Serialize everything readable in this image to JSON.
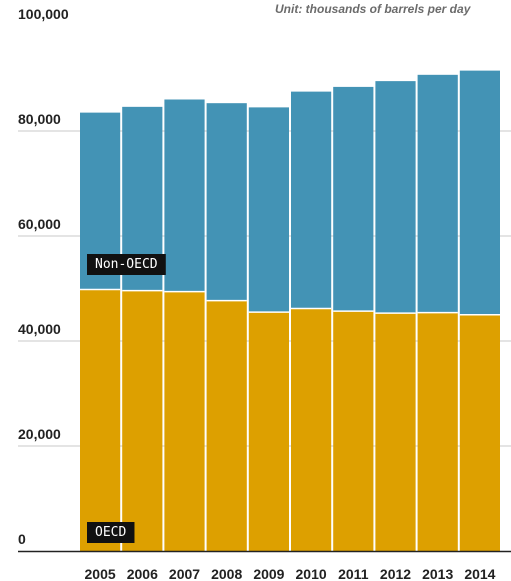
{
  "unit_note": "Unit: thousands of barrels per day",
  "colors": {
    "oecd": "#dda000",
    "non_oecd": "#4393b5",
    "label_bg": "#111111",
    "gridline": "#c9c9c9",
    "axis": "#222222"
  },
  "chart_data": {
    "type": "bar",
    "stacked": true,
    "categories": [
      "2005",
      "2006",
      "2007",
      "2008",
      "2009",
      "2010",
      "2011",
      "2012",
      "2013",
      "2014"
    ],
    "series": [
      {
        "name": "OECD",
        "values": [
          49800,
          49600,
          49400,
          47700,
          45500,
          46200,
          45700,
          45300,
          45400,
          45000
        ]
      },
      {
        "name": "Non-OECD",
        "values": [
          33700,
          35000,
          36600,
          37600,
          39000,
          41300,
          42700,
          44200,
          45300,
          46500
        ]
      }
    ],
    "ylim": [
      0,
      100000
    ],
    "yticks": [
      {
        "value": 0,
        "label": "0"
      },
      {
        "value": 20000,
        "label": "20,000"
      },
      {
        "value": 40000,
        "label": "40,000"
      },
      {
        "value": 60000,
        "label": "60,000"
      },
      {
        "value": 80000,
        "label": "80,000"
      },
      {
        "value": 100000,
        "label": "100,000"
      }
    ],
    "grid": true,
    "xlabel": "",
    "ylabel": ""
  }
}
